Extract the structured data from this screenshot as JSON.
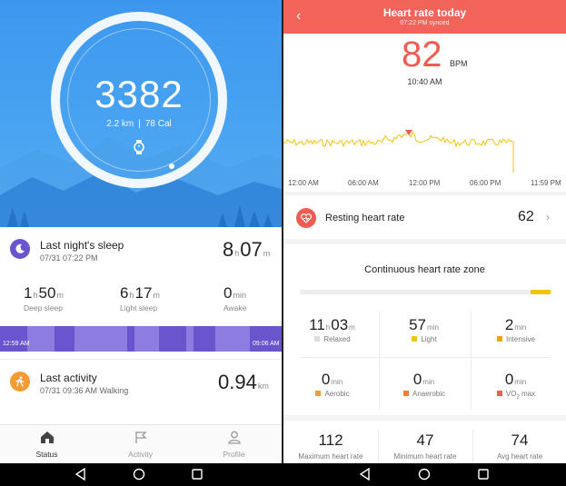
{
  "left": {
    "steps": "3382",
    "distance": "2.2 km",
    "separator": "|",
    "calories": "78 Cal",
    "sleep": {
      "title": "Last night's sleep",
      "date": "07/31 07:22 PM",
      "total_h": "8",
      "total_h_unit": "h",
      "total_m": "07",
      "total_m_unit": "m",
      "deep": {
        "h": "1",
        "m": "50",
        "label": "Deep sleep"
      },
      "light": {
        "h": "6",
        "m": "17",
        "label": "Light sleep"
      },
      "awake": {
        "v": "0",
        "unit": "min",
        "label": "Awake"
      },
      "bar_start": "12:59 AM",
      "bar_end": "09:06 AM",
      "units": {
        "h": "h",
        "m": "m"
      }
    },
    "activity": {
      "title": "Last activity",
      "date": "07/31 09:36 AM Walking",
      "distance": "0.94",
      "distance_unit": "km"
    },
    "tabs": [
      {
        "label": "Status",
        "icon": "home-icon",
        "active": true
      },
      {
        "label": "Activity",
        "icon": "flag-icon",
        "active": false
      },
      {
        "label": "Profile",
        "icon": "person-icon",
        "active": false
      }
    ],
    "colors": {
      "hero": "#3d97ee",
      "sleep_icon": "#6a55cf",
      "activity_icon": "#f39c34",
      "sleep_bar": "#8e7de0"
    }
  },
  "right": {
    "title": "Heart rate today",
    "synced": "07:22 PM synced",
    "bpm": "82",
    "bpm_unit": "BPM",
    "time": "10:40 AM",
    "chart_labels": [
      "12:00 AM",
      "06:00 AM",
      "12:00 PM",
      "06:00 PM",
      "11:59 PM"
    ],
    "resting": {
      "label": "Resting heart rate",
      "value": "62"
    },
    "zone": {
      "title": "Continuous heart rate zone",
      "relaxed": {
        "h": "11",
        "m": "03",
        "label": "Relaxed"
      },
      "light": {
        "v": "57",
        "unit": "min",
        "label": "Light"
      },
      "intensive": {
        "v": "2",
        "unit": "min",
        "label": "Intensive"
      },
      "aerobic": {
        "v": "0",
        "unit": "min",
        "label": "Aerobic"
      },
      "anaerobic": {
        "v": "0",
        "unit": "min",
        "label": "Anaerobic"
      },
      "vo2max": {
        "v": "0",
        "unit": "min",
        "label_prefix": "VO",
        "label_sub": "2",
        "label_suffix": " max"
      }
    },
    "summary": [
      {
        "value": "112",
        "label": "Maximum heart rate"
      },
      {
        "value": "47",
        "label": "Minimum heart rate"
      },
      {
        "value": "74",
        "label": "Avg heart rate"
      }
    ],
    "colors": {
      "header": "#f2635a",
      "accent": "#ef5c52",
      "chart_line": "#f1c40f",
      "relaxed": "#dddddd",
      "light": "#f1c40f",
      "intensive": "#f0a30a",
      "aerobic": "#f39c34",
      "anaerobic": "#f08030",
      "vo2max": "#ef5c52"
    }
  },
  "nav": [
    "back-nav-icon",
    "home-nav-icon",
    "recents-nav-icon"
  ]
}
